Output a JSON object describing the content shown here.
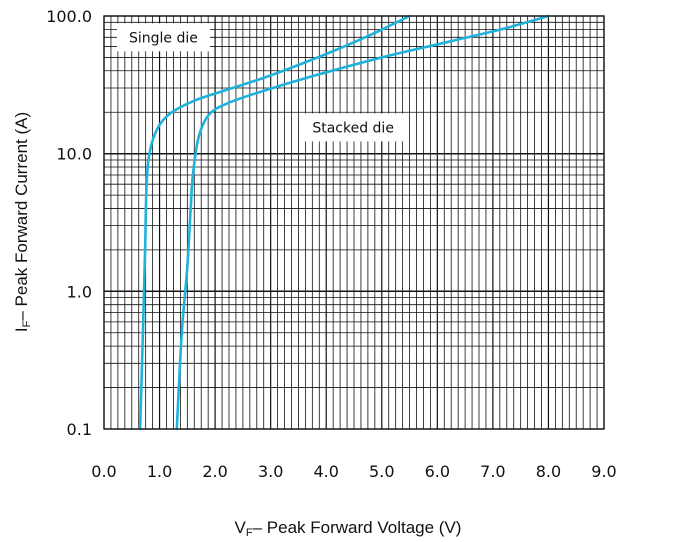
{
  "chart_data": {
    "type": "line",
    "xlabel": {
      "main": "V",
      "sub": "F",
      "rest": "– Peak Forward Voltage (V)"
    },
    "ylabel": {
      "main": "I",
      "sub": "F",
      "rest": "– Peak Forward Current (A)"
    },
    "xlim": [
      0.0,
      9.0
    ],
    "ylim": [
      0.1,
      100.0
    ],
    "yscale": "log",
    "x_ticks": [
      "0.0",
      "1.0",
      "2.0",
      "3.0",
      "4.0",
      "5.0",
      "6.0",
      "7.0",
      "8.0",
      "9.0"
    ],
    "y_ticks": [
      {
        "value": 0.1,
        "label": "0.1"
      },
      {
        "value": 1.0,
        "label": "1.0"
      },
      {
        "value": 10.0,
        "label": "10.0"
      },
      {
        "value": 100.0,
        "label": "100.0"
      }
    ],
    "grid": true,
    "line_color": "#1fb3dc",
    "series": [
      {
        "points": [
          [
            0.65,
            0.1
          ],
          [
            0.7,
            0.5
          ],
          [
            0.74,
            2.0
          ],
          [
            0.76,
            5.0
          ],
          [
            0.8,
            9.0
          ],
          [
            0.92,
            14.0
          ],
          [
            1.15,
            19.0
          ],
          [
            1.6,
            24.0
          ],
          [
            2.2,
            29.0
          ],
          [
            3.0,
            37.0
          ],
          [
            4.0,
            53.0
          ],
          [
            4.8,
            73.0
          ],
          [
            5.5,
            100.0
          ]
        ]
      },
      {
        "points": [
          [
            1.31,
            0.1
          ],
          [
            1.4,
            0.5
          ],
          [
            1.5,
            1.5
          ],
          [
            1.56,
            4.0
          ],
          [
            1.6,
            7.0
          ],
          [
            1.7,
            13.0
          ],
          [
            1.88,
            19.0
          ],
          [
            2.2,
            23.0
          ],
          [
            2.8,
            28.0
          ],
          [
            3.8,
            37.0
          ],
          [
            5.0,
            50.0
          ],
          [
            6.2,
            65.0
          ],
          [
            7.2,
            81.0
          ],
          [
            8.0,
            100.0
          ]
        ]
      }
    ],
    "annotations": [
      {
        "text": "Single die",
        "x": 0.45,
        "y": 70.0
      },
      {
        "text": "Stacked die",
        "x": 3.75,
        "y": 15.5
      }
    ]
  }
}
